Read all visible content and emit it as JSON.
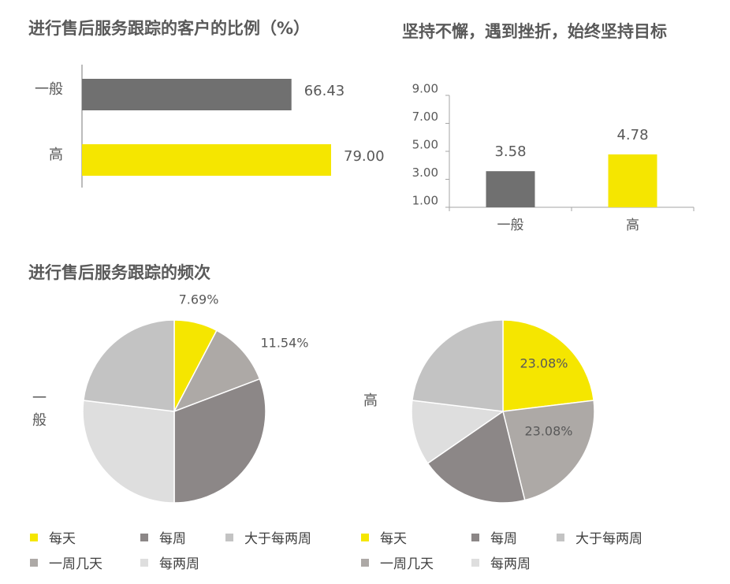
{
  "titles": {
    "chart1": "进行售后服务跟踪的客户的比例（%）",
    "chart2": "坚持不懈，遇到挫折，始终坚持目标",
    "chart3": "进行售后服务跟踪的频次"
  },
  "colors": {
    "yellow": "#F5E600",
    "dark_gray": "#6E6E6E",
    "bar_gray": "#707070",
    "pie_dark": "#8C8787",
    "pie_mid": "#ADA9A6",
    "pie_light_mid": "#C3C3C3",
    "pie_light": "#DEDEDE",
    "axis": "#A6A6A6",
    "text": "#595959"
  },
  "legend": [
    {
      "label": "每天",
      "color": "#F5E600"
    },
    {
      "label": "每周",
      "color": "#8C8787"
    },
    {
      "label": "大于每两周",
      "color": "#C3C3C3"
    },
    {
      "label": "一周几天",
      "color": "#ADA9A6"
    },
    {
      "label": "每两周",
      "color": "#DEDEDE"
    }
  ],
  "chart_data": [
    {
      "type": "bar",
      "orientation": "horizontal",
      "title": "进行售后服务跟踪的客户的比例（%）",
      "categories": [
        "一般",
        "高"
      ],
      "values": [
        66.43,
        79.0
      ],
      "value_labels": [
        "66.43",
        "79.00"
      ],
      "colors": [
        "#707070",
        "#F5E600"
      ],
      "xlim": [
        0,
        100
      ]
    },
    {
      "type": "bar",
      "title": "坚持不懈，遇到挫折，始终坚持目标",
      "categories": [
        "一般",
        "高"
      ],
      "values": [
        3.58,
        4.78
      ],
      "value_labels": [
        "3.58",
        "4.78"
      ],
      "colors": [
        "#707070",
        "#F5E600"
      ],
      "ylim": [
        1,
        9
      ],
      "yticks": [
        "1.00",
        "3.00",
        "5.00",
        "7.00",
        "9.00"
      ]
    },
    {
      "type": "pie",
      "title": "进行售后服务跟踪的频次",
      "group_label": "一般",
      "categories": [
        "每天",
        "大于每两周",
        "每周",
        "每两周",
        "一周几天"
      ],
      "values": [
        7.69,
        11.54,
        30.77,
        26.92,
        23.08
      ],
      "value_labels": [
        "7.69%",
        "11.54%",
        "",
        "",
        ""
      ],
      "colors": [
        "#F5E600",
        "#ADA9A6",
        "#8C8787",
        "#DEDEDE",
        "#C3C3C3"
      ]
    },
    {
      "type": "pie",
      "group_label": "高",
      "categories": [
        "每天",
        "一周几天",
        "每周",
        "每两周",
        "大于每两周"
      ],
      "values": [
        23.08,
        23.08,
        19.23,
        11.54,
        23.08
      ],
      "value_labels": [
        "23.08%",
        "23.08%",
        "",
        "",
        ""
      ],
      "colors": [
        "#F5E600",
        "#ADA9A6",
        "#8C8787",
        "#DEDEDE",
        "#C3C3C3"
      ]
    }
  ]
}
